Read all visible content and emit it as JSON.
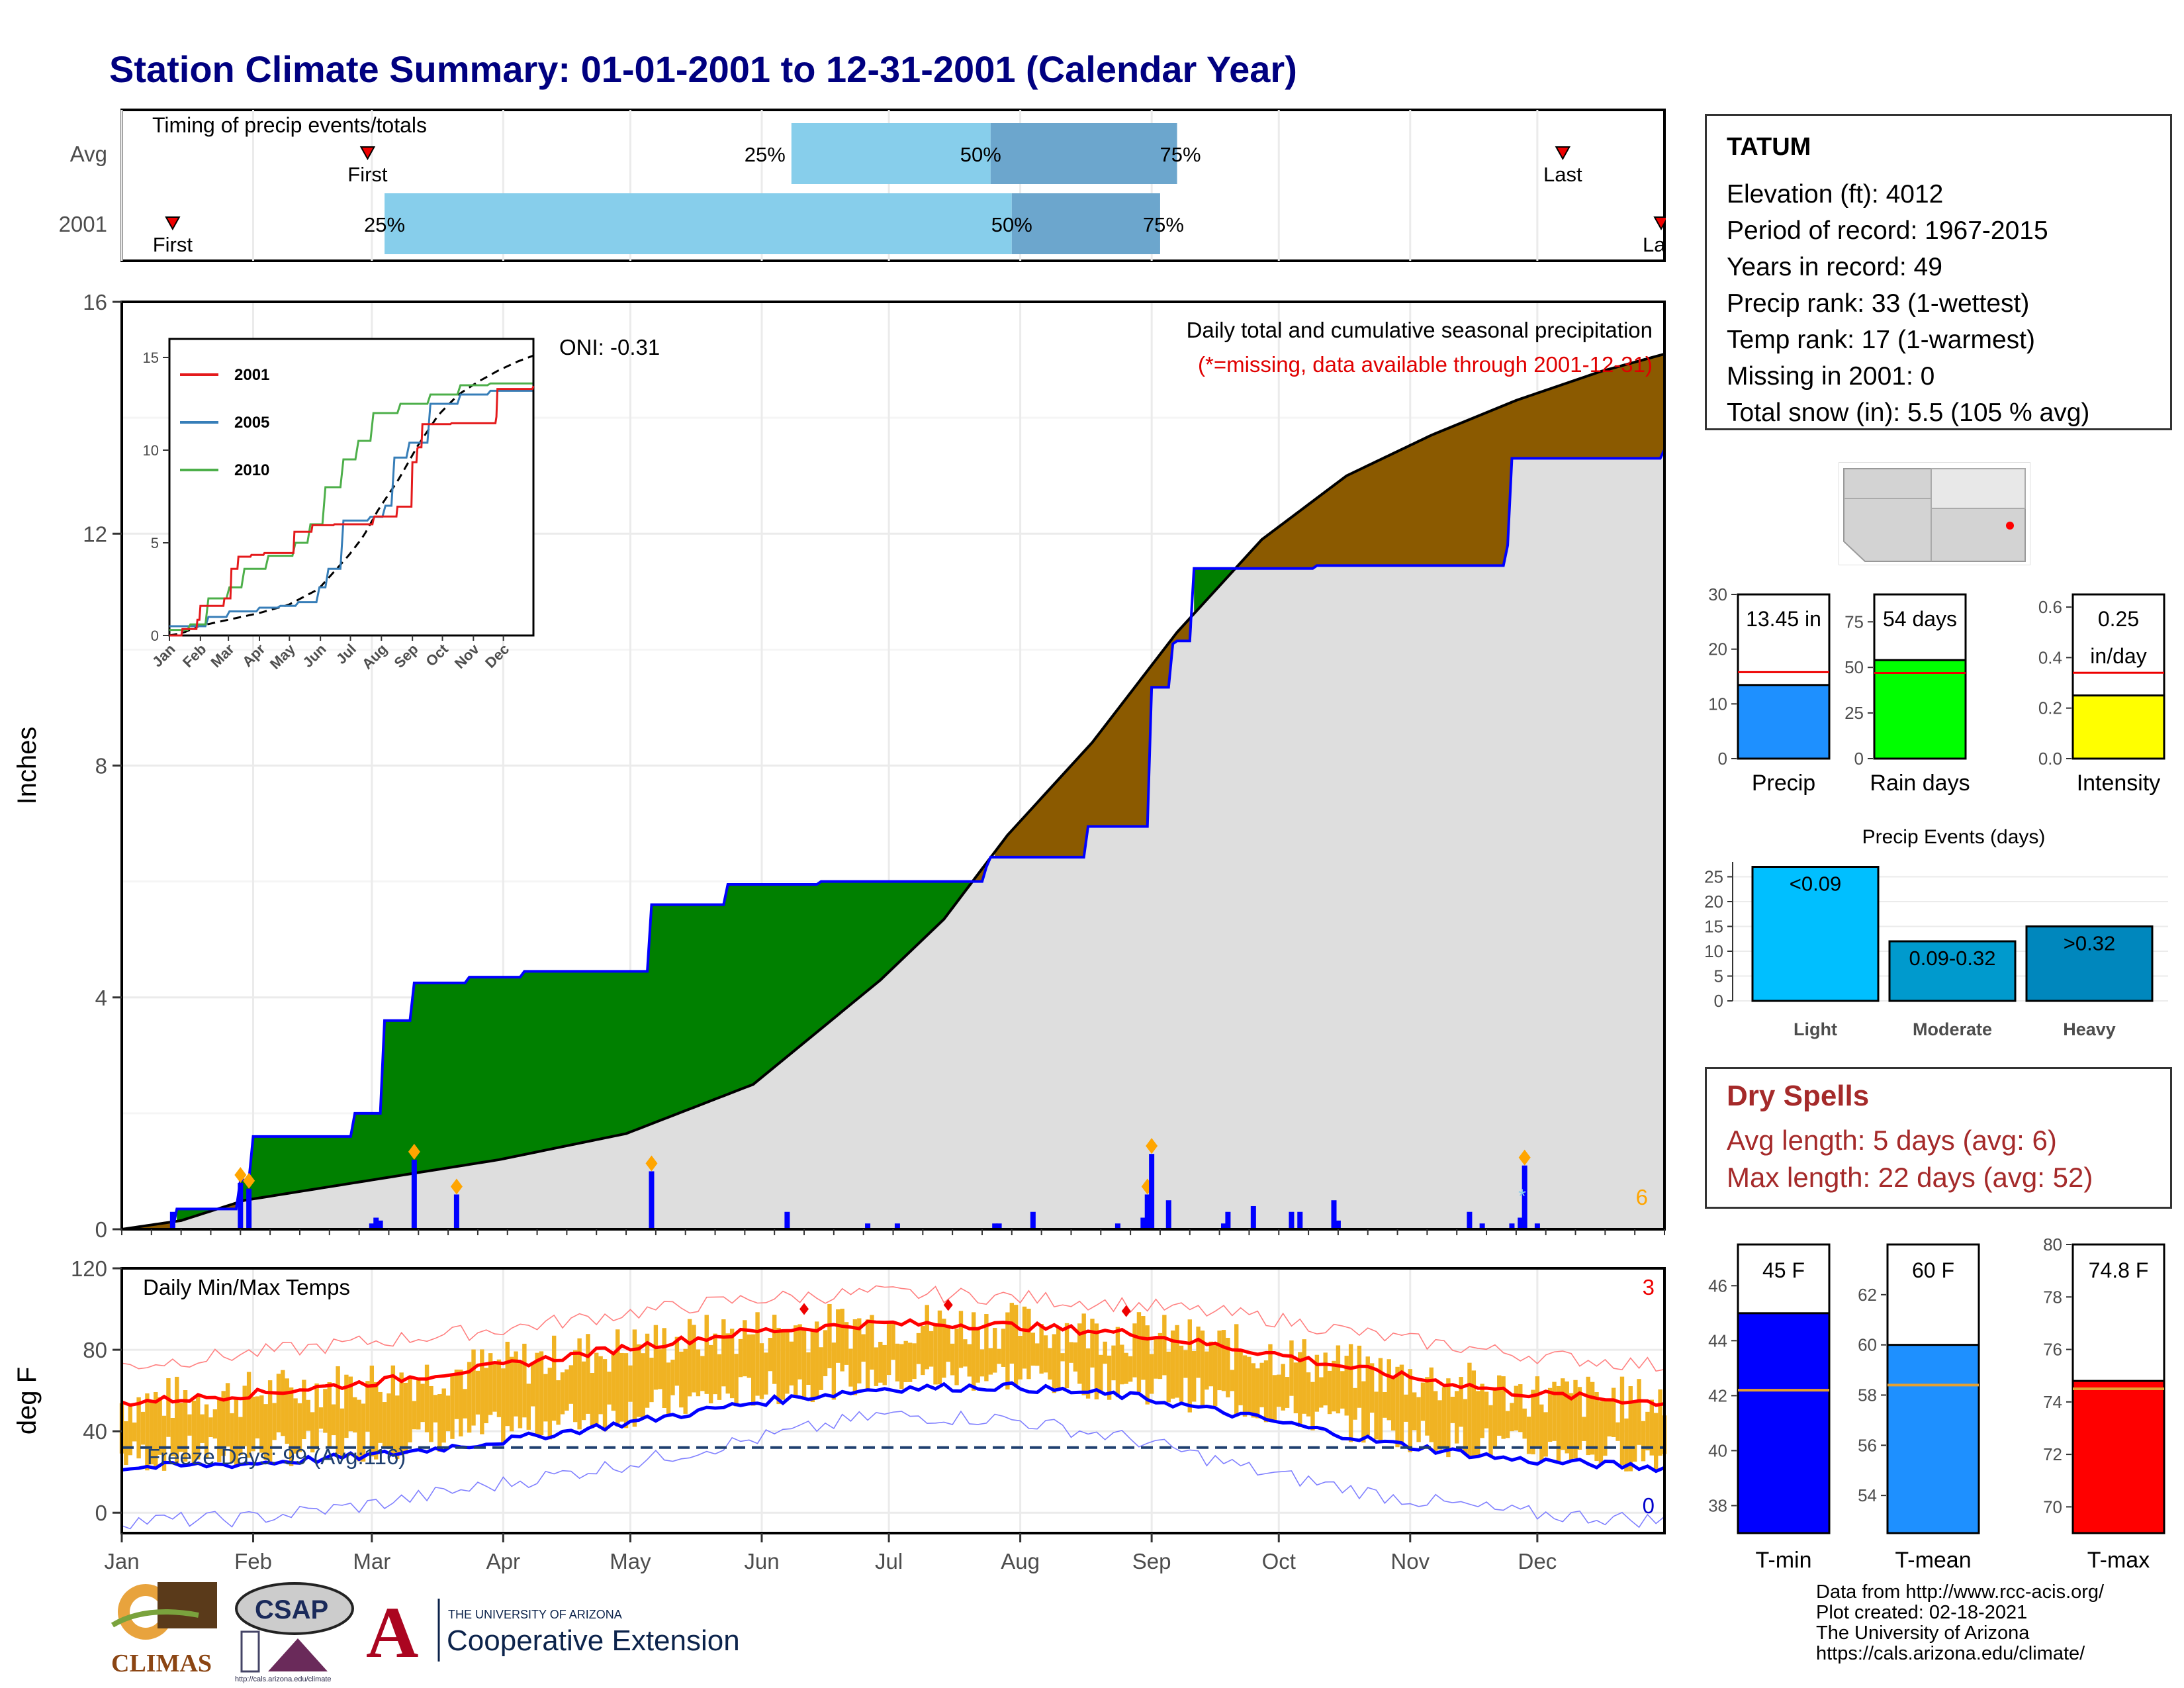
{
  "title": "Station Climate Summary: 01-01-2001 to 12-31-2001 (Calendar Year)",
  "colors": {
    "title": "#000080",
    "precip_above": "#008000",
    "precip_below": "#8B5A00",
    "quartile_light": "#87CEEB",
    "quartile_dark": "#6CA6CD",
    "tmin": "#0000ff",
    "tmax": "#ff0000",
    "range_bars": "#F0B323",
    "dry_spells": "#a52a2a"
  },
  "timing": {
    "title": "Timing of precip events/totals",
    "rows": [
      {
        "label": "Avg",
        "first_label": "First",
        "last_label": "Last",
        "first_day": 59,
        "last_day": 341,
        "q25_label": "25%",
        "q50_label": "50%",
        "q75_label": "75%",
        "q25_day": 159,
        "q50_day": 206,
        "q75_day": 250
      },
      {
        "label": "2001",
        "first_label": "First",
        "last_label": "Last",
        "first_day": 13,
        "last_day": 365,
        "q25_label": "25%",
        "q50_label": "50%",
        "q75_label": "75%",
        "q25_day": 63,
        "q50_day": 211,
        "q75_day": 246
      }
    ]
  },
  "precip_panel": {
    "caption": "Daily total and cumulative seasonal precipitation",
    "missing_note": "(*=missing, data available through 2001-12-31)",
    "oni": "ONI: -0.31",
    "ylabel": "Inches",
    "ylim": [
      0,
      16
    ],
    "yticks": [
      "0",
      "4",
      "8",
      "12",
      "16"
    ],
    "count_label": "6"
  },
  "inset": {
    "yticks": [
      "0",
      "5",
      "10",
      "15"
    ],
    "xticks": [
      "Jan",
      "Feb",
      "Mar",
      "Apr",
      "May",
      "Jun",
      "Jul",
      "Aug",
      "Sep",
      "Oct",
      "Nov",
      "Dec"
    ],
    "legend": [
      {
        "name": "2001",
        "color": "#e41a1c"
      },
      {
        "name": "2005",
        "color": "#377eb8"
      },
      {
        "name": "2010",
        "color": "#4daf4a"
      }
    ]
  },
  "temp_panel": {
    "caption": "Daily Min/Max Temps",
    "ylabel": "deg F",
    "ylim": [
      -10,
      120
    ],
    "yticks": [
      "0",
      "40",
      "80",
      "120"
    ],
    "freeze": "Freeze Days: 99 (Avg:116)",
    "count_top": "3",
    "count_bottom": "0"
  },
  "months": [
    "Jan",
    "Feb",
    "Mar",
    "Apr",
    "May",
    "Jun",
    "Jul",
    "Aug",
    "Sep",
    "Oct",
    "Nov",
    "Dec"
  ],
  "station": {
    "name": "TATUM",
    "rows": [
      "Elevation (ft): 4012",
      "Period of record: 1967-2015",
      "Years in record: 49",
      "Precip rank: 33 (1-wettest)",
      "Temp rank: 17 (1-warmest)",
      "Missing in 2001: 0",
      "Total snow (in): 5.5 (105 % avg)"
    ]
  },
  "mini_bars": [
    {
      "xlabel": "Precip",
      "value_label": "13.45 in",
      "yticks": [
        "0",
        "10",
        "20",
        "30"
      ],
      "ymax": 30,
      "value": 13.45,
      "avg": 15.8,
      "color": "#1E90FF"
    },
    {
      "xlabel": "Rain days",
      "value_label": "54 days",
      "yticks": [
        "0",
        "25",
        "50",
        "75"
      ],
      "ymax": 90,
      "value": 54,
      "avg": 47,
      "color": "#00ff00"
    },
    {
      "xlabel": "Intensity",
      "value_label": "0.25",
      "value_label2": "in/day",
      "yticks": [
        "0.0",
        "0.2",
        "0.4",
        "0.6"
      ],
      "ymax": 0.65,
      "value": 0.25,
      "avg": 0.34,
      "color": "#ffff00"
    }
  ],
  "events": {
    "title": "Precip Events (days)",
    "yticks": [
      "0",
      "5",
      "10",
      "15",
      "20",
      "25"
    ],
    "categories": [
      "Light",
      "Moderate",
      "Heavy"
    ],
    "labels": [
      "<0.09",
      "0.09-0.32",
      ">0.32"
    ],
    "values": [
      27,
      12,
      15
    ],
    "colors": [
      "#00BFFF",
      "#009ACD",
      "#0087BD"
    ]
  },
  "dry_spells": {
    "title": "Dry Spells",
    "rows": [
      "Avg length: 5 days (avg: 6)",
      "Max length: 22 days (avg: 52)"
    ]
  },
  "temp_bars": [
    {
      "xlabel": "T-min",
      "value_label": "45 F",
      "yticks": [
        "38",
        "40",
        "42",
        "44",
        "46"
      ],
      "ymin": 37,
      "ymax": 47.5,
      "value": 45,
      "avg": 42.2,
      "color": "#0000ff"
    },
    {
      "xlabel": "T-mean",
      "value_label": "60 F",
      "yticks": [
        "54",
        "56",
        "58",
        "60",
        "62"
      ],
      "ymin": 52.5,
      "ymax": 64,
      "value": 60,
      "avg": 58.4,
      "color": "#1E90FF"
    },
    {
      "xlabel": "T-max",
      "value_label": "74.8 F",
      "yticks": [
        "70",
        "72",
        "74",
        "76",
        "78",
        "80"
      ],
      "ymin": 69,
      "ymax": 80,
      "value": 74.8,
      "avg": 74.5,
      "color": "#ff0000"
    }
  ],
  "credits": [
    "Data from http://www.rcc-acis.org/",
    "Plot created: 02-18-2021",
    "The University of Arizona",
    "https://cals.arizona.edu/climate/"
  ],
  "logos": {
    "climas": "CLIMAS",
    "csap": "CSAP",
    "csap_url": "http://cals.arizona.edu/climate",
    "ua_letter": "A",
    "ua_small": "THE UNIVERSITY OF ARIZONA",
    "ua_large": "Cooperative Extension"
  },
  "chart_data": {
    "type": "area",
    "title": "Daily total and cumulative seasonal precipitation",
    "ylabel": "Inches",
    "ylim": [
      0,
      16
    ],
    "series": [
      {
        "name": "2001 cumulative",
        "x": [
          1,
          13,
          14,
          28,
          29,
          31,
          32,
          55,
          56,
          62,
          63,
          69,
          70,
          82,
          83,
          95,
          96,
          125,
          126,
          143,
          144,
          165,
          166,
          190,
          205,
          206,
          228,
          229,
          243,
          244,
          248,
          249,
          250,
          253,
          254,
          282,
          283,
          284,
          328,
          329,
          365
        ],
        "y": [
          0,
          0,
          0.35,
          0.35,
          0.85,
          0.85,
          1.6,
          1.6,
          2.0,
          2.0,
          3.6,
          3.6,
          4.25,
          4.25,
          4.35,
          4.35,
          4.45,
          4.45,
          5.6,
          5.6,
          5.95,
          5.95,
          6.0,
          6.0,
          6.25,
          6.42,
          6.42,
          6.95,
          6.95,
          9.35,
          9.35,
          10.1,
          10.15,
          10.15,
          11.4,
          11.4,
          11.45,
          11.45,
          11.8,
          13.3,
          13.45
        ]
      },
      {
        "name": "Average cumulative",
        "x": [
          1,
          15,
          30,
          60,
          90,
          120,
          150,
          180,
          195,
          210,
          230,
          250,
          270,
          290,
          310,
          330,
          350,
          365
        ],
        "y": [
          0,
          0.15,
          0.5,
          0.85,
          1.2,
          1.65,
          2.5,
          4.3,
          5.35,
          6.8,
          8.4,
          10.3,
          11.9,
          13.0,
          13.7,
          14.3,
          14.8,
          15.1
        ]
      }
    ],
    "daily_precip": {
      "x": [
        13,
        29,
        31,
        60,
        61,
        62,
        70,
        80,
        126,
        158,
        177,
        184,
        207,
        208,
        216,
        236,
        242,
        243,
        244,
        248,
        261,
        262,
        268,
        277,
        279,
        287,
        288,
        319,
        322,
        329,
        331,
        332,
        335
      ],
      "y": [
        0.3,
        0.8,
        0.7,
        0.1,
        0.2,
        0.15,
        1.2,
        0.6,
        1.0,
        0.3,
        0.1,
        0.1,
        0.1,
        0.1,
        0.3,
        0.1,
        0.2,
        0.6,
        1.3,
        0.5,
        0.1,
        0.3,
        0.4,
        0.3,
        0.3,
        0.5,
        0.15,
        0.3,
        0.1,
        0.1,
        0.2,
        1.1,
        0.1
      ]
    },
    "temperature": {
      "avg_tmax": {
        "x": [
          1,
          30,
          60,
          90,
          120,
          150,
          180,
          210,
          240,
          270,
          300,
          330,
          365
        ],
        "y": [
          54,
          58,
          64,
          72,
          81,
          89,
          93,
          92,
          88,
          79,
          68,
          59,
          54
        ]
      },
      "avg_tmin": {
        "x": [
          1,
          30,
          60,
          90,
          120,
          150,
          180,
          210,
          240,
          270,
          300,
          330,
          365
        ],
        "y": [
          22,
          24,
          28,
          35,
          44,
          54,
          61,
          62,
          57,
          46,
          34,
          26,
          22
        ]
      },
      "record_high": {
        "x": [
          1,
          30,
          60,
          90,
          120,
          150,
          180,
          210,
          240,
          270,
          300,
          330,
          365
        ],
        "y": [
          72,
          78,
          84,
          90,
          98,
          105,
          108,
          106,
          102,
          96,
          86,
          78,
          72
        ]
      },
      "record_low": {
        "x": [
          1,
          30,
          60,
          90,
          120,
          150,
          180,
          210,
          240,
          270,
          300,
          330,
          365
        ],
        "y": [
          -4,
          -3,
          4,
          14,
          24,
          36,
          48,
          46,
          36,
          20,
          8,
          0,
          -4
        ]
      },
      "freeze_line": 32
    }
  }
}
